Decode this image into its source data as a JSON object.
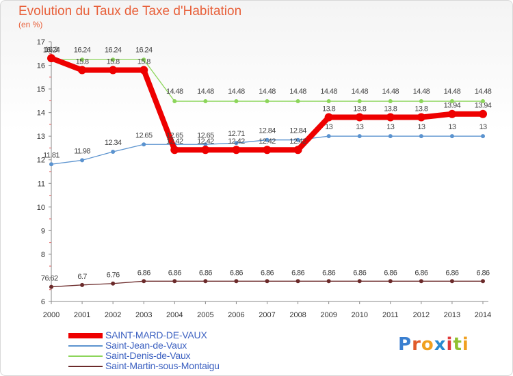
{
  "title": "Evolution du Taux de Taxe d'Habitation",
  "unit": "(en %)",
  "logo": {
    "letters": [
      "P",
      "r",
      "o",
      "x",
      "i",
      "t",
      "i"
    ],
    "colors": [
      "#3a7fd0",
      "#e05a2a",
      "#f0a020",
      "#2a8ad0",
      "#e03a3a",
      "#90c030",
      "#f0a020"
    ]
  },
  "chart_data": {
    "type": "line",
    "x": [
      "2000",
      "2001",
      "2002",
      "2003",
      "2004",
      "2005",
      "2006",
      "2007",
      "2008",
      "2009",
      "2010",
      "2011",
      "2012",
      "2013",
      "2014"
    ],
    "ylim": [
      6,
      17
    ],
    "yticks": [
      "6",
      "7",
      "8",
      "9",
      "10",
      "11",
      "12",
      "13",
      "14",
      "15",
      "16",
      "17"
    ],
    "grid": false,
    "legend": "bottom-left",
    "series": [
      {
        "name": "SAINT-MARD-DE-VAUX",
        "color": "#ee0000",
        "thick": true,
        "values": [
          16.3,
          15.8,
          15.8,
          15.8,
          12.42,
          12.42,
          12.42,
          12.42,
          12.42,
          13.8,
          13.8,
          13.8,
          13.8,
          13.94,
          13.94
        ],
        "labels": [
          "16.3",
          "15.8",
          "15.8",
          "15.8",
          "12.42",
          "12.42",
          "12.42",
          "12.42",
          "12.42",
          "13.8",
          "13.8",
          "13.8",
          "13.8",
          "13.94",
          "13.94"
        ]
      },
      {
        "name": "Saint-Jean-de-Vaux",
        "color": "#5b93cf",
        "thick": false,
        "values": [
          11.81,
          11.98,
          12.34,
          12.65,
          12.65,
          12.65,
          12.71,
          12.84,
          12.84,
          13,
          13,
          13,
          13,
          13,
          13
        ],
        "labels": [
          "11.81",
          "11.98",
          "12.34",
          "12.65",
          "12.65",
          "12.65",
          "12.71",
          "12.84",
          "12.84",
          "13",
          "13",
          "13",
          "13",
          "13",
          "13"
        ]
      },
      {
        "name": "Saint-Denis-de-Vaux",
        "color": "#8cd55a",
        "thick": false,
        "values": [
          16.24,
          16.24,
          16.24,
          16.24,
          14.48,
          14.48,
          14.48,
          14.48,
          14.48,
          14.48,
          14.48,
          14.48,
          14.48,
          14.48,
          14.48
        ],
        "labels": [
          "16.24",
          "16.24",
          "16.24",
          "16.24",
          "14.48",
          "14.48",
          "14.48",
          "14.48",
          "14.48",
          "14.48",
          "14.48",
          "14.48",
          "14.48",
          "14.48",
          "14.48"
        ]
      },
      {
        "name": "Saint-Martin-sous-Montaigu",
        "color": "#6b2a2a",
        "thick": false,
        "values": [
          6.62,
          6.7,
          6.76,
          6.86,
          6.86,
          6.86,
          6.86,
          6.86,
          6.86,
          6.86,
          6.86,
          6.86,
          6.86,
          6.86,
          6.86
        ],
        "labels": [
          "6.62",
          "6.7",
          "6.76",
          "6.86",
          "6.86",
          "6.86",
          "6.86",
          "6.86",
          "6.86",
          "6.86",
          "6.86",
          "6.86",
          "6.86",
          "6.86",
          "6.86"
        ]
      }
    ]
  }
}
